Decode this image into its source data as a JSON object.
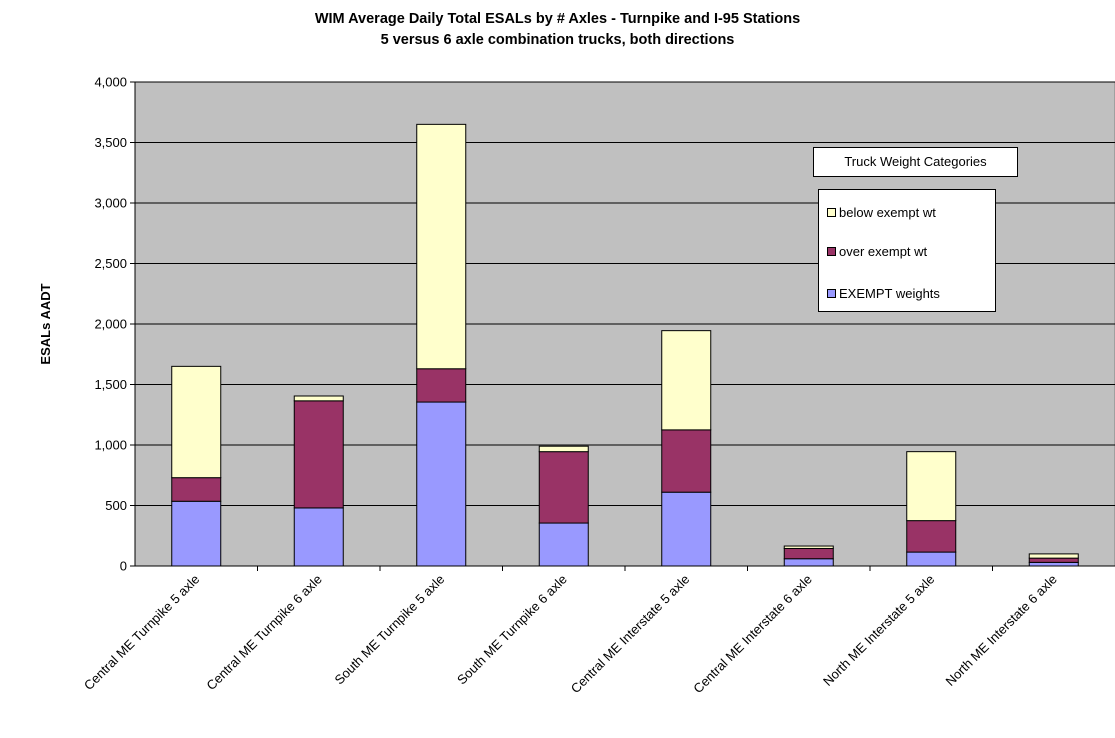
{
  "chart_data": {
    "type": "bar",
    "stacked": true,
    "title": "WIM Average Daily Total ESALs by # Axles - Turnpike and I-95 Stations",
    "subtitle": "5 versus 6 axle combination trucks, both directions",
    "ylabel": "ESALs AADT",
    "xlabel": "",
    "ylim": [
      0,
      4000
    ],
    "yticks": [
      "0",
      "500",
      "1,000",
      "1,500",
      "2,000",
      "2,500",
      "3,000",
      "3,500",
      "4,000"
    ],
    "grid": true,
    "categories": [
      "Central ME Turnpike 5 axle",
      "Central ME Turnpike 6 axle",
      "South ME Turnpike 5 axle",
      "South ME Turnpike 6 axle",
      "Central ME Interstate 5 axle",
      "Central ME Interstate 6 axle",
      "North ME Interstate 5 axle",
      "North ME Interstate 6 axle"
    ],
    "series": [
      {
        "name": "EXEMPT weights",
        "color": "#9999FF",
        "values": [
          535,
          480,
          1355,
          355,
          610,
          60,
          115,
          30
        ]
      },
      {
        "name": "over exempt wt",
        "color": "#993366",
        "values": [
          195,
          885,
          275,
          590,
          515,
          85,
          260,
          35
        ]
      },
      {
        "name": "below exempt wt",
        "color": "#FFFFCC",
        "values": [
          920,
          40,
          2020,
          45,
          820,
          20,
          570,
          35
        ]
      }
    ],
    "legend": {
      "title": "Truck Weight Categories",
      "placement": "right",
      "order": [
        "below exempt wt",
        "over exempt wt",
        "EXEMPT weights"
      ]
    },
    "plot_background": "#C0C0C0"
  }
}
